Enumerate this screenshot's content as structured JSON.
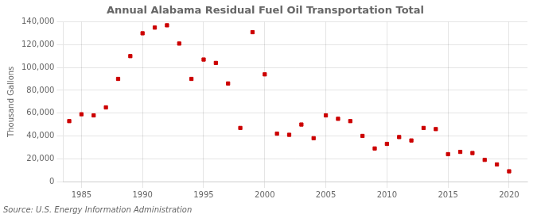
{
  "chart_data": {
    "type": "scatter",
    "title": "Annual Alabama Residual Fuel Oil Transportation Total",
    "ylabel": "Thousand Gallons",
    "annotation": "Source: U.S. Energy Information Administration",
    "color": "#cc0000",
    "marker": "square",
    "grid": true,
    "xlim": [
      1983.5,
      2021.5
    ],
    "ylim": [
      0,
      140000
    ],
    "xticks": [
      1985,
      1990,
      1995,
      2000,
      2005,
      2010,
      2015,
      2020
    ],
    "yticks": [
      0,
      {
        "value": 20000,
        "label": "20,000"
      },
      {
        "value": 40000,
        "label": "40,000"
      },
      {
        "value": 60000,
        "label": "60,000"
      },
      {
        "value": 80000,
        "label": "80,000"
      },
      {
        "value": 100000,
        "label": "100,000"
      },
      {
        "value": 120000,
        "label": "120,000"
      },
      {
        "value": 140000,
        "label": "140,000"
      }
    ],
    "x": [
      1984,
      1985,
      1986,
      1987,
      1988,
      1989,
      1990,
      1991,
      1992,
      1993,
      1994,
      1995,
      1996,
      1997,
      1998,
      1999,
      2000,
      2001,
      2002,
      2003,
      2004,
      2005,
      2006,
      2007,
      2008,
      2009,
      2010,
      2011,
      2012,
      2013,
      2014,
      2015,
      2016,
      2017,
      2018,
      2019,
      2020
    ],
    "values": [
      53000,
      59000,
      58000,
      65000,
      90000,
      110000,
      130000,
      135000,
      137000,
      121000,
      90000,
      107000,
      104000,
      86000,
      47000,
      131000,
      94000,
      42000,
      41000,
      50000,
      38000,
      58000,
      55000,
      53000,
      40000,
      29000,
      33000,
      39000,
      36000,
      47000,
      46000,
      24000,
      26000,
      25000,
      19000,
      15000,
      9000
    ]
  }
}
